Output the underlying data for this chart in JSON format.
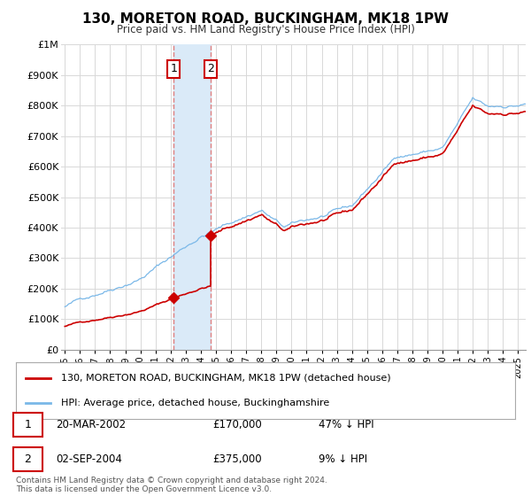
{
  "title": "130, MORETON ROAD, BUCKINGHAM, MK18 1PW",
  "subtitle": "Price paid vs. HM Land Registry's House Price Index (HPI)",
  "legend_line1": "130, MORETON ROAD, BUCKINGHAM, MK18 1PW (detached house)",
  "legend_line2": "HPI: Average price, detached house, Buckinghamshire",
  "transaction1_date": "20-MAR-2002",
  "transaction1_price": "£170,000",
  "transaction1_hpi": "47% ↓ HPI",
  "transaction2_date": "02-SEP-2004",
  "transaction2_price": "£375,000",
  "transaction2_hpi": "9% ↓ HPI",
  "footer": "Contains HM Land Registry data © Crown copyright and database right 2024.\nThis data is licensed under the Open Government Licence v3.0.",
  "hpi_color": "#7ab8e8",
  "price_color": "#cc0000",
  "highlight_color": "#daeaf8",
  "vline_color": "#e08080",
  "transaction_box_color": "#cc0000",
  "ylim": [
    0,
    1000000
  ],
  "yticks": [
    0,
    100000,
    200000,
    300000,
    400000,
    500000,
    600000,
    700000,
    800000,
    900000,
    1000000
  ],
  "ytick_labels": [
    "£0",
    "£100K",
    "£200K",
    "£300K",
    "£400K",
    "£500K",
    "£600K",
    "£700K",
    "£800K",
    "£900K",
    "£1M"
  ],
  "background_color": "#ffffff",
  "grid_color": "#d8d8d8",
  "t1_year": 2002.2,
  "t1_price": 170000,
  "t2_year": 2004.67,
  "t2_price": 375000
}
